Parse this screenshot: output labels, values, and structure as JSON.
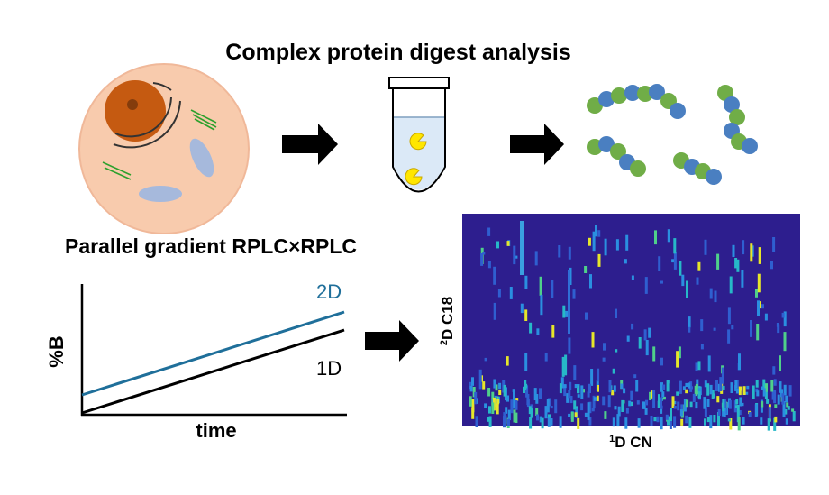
{
  "header": {
    "title": "Complex protein digest analysis"
  },
  "gradient": {
    "title": "Parallel gradient RPLC×RPLC",
    "y_label": "%B",
    "x_label": "time",
    "lines": [
      {
        "label": "2D"
      },
      {
        "label": "1D"
      }
    ]
  },
  "heatmap": {
    "y_label": {
      "superscript": "2",
      "text": "D C18"
    },
    "x_label": {
      "superscript": "1",
      "text": "D CN"
    }
  }
}
